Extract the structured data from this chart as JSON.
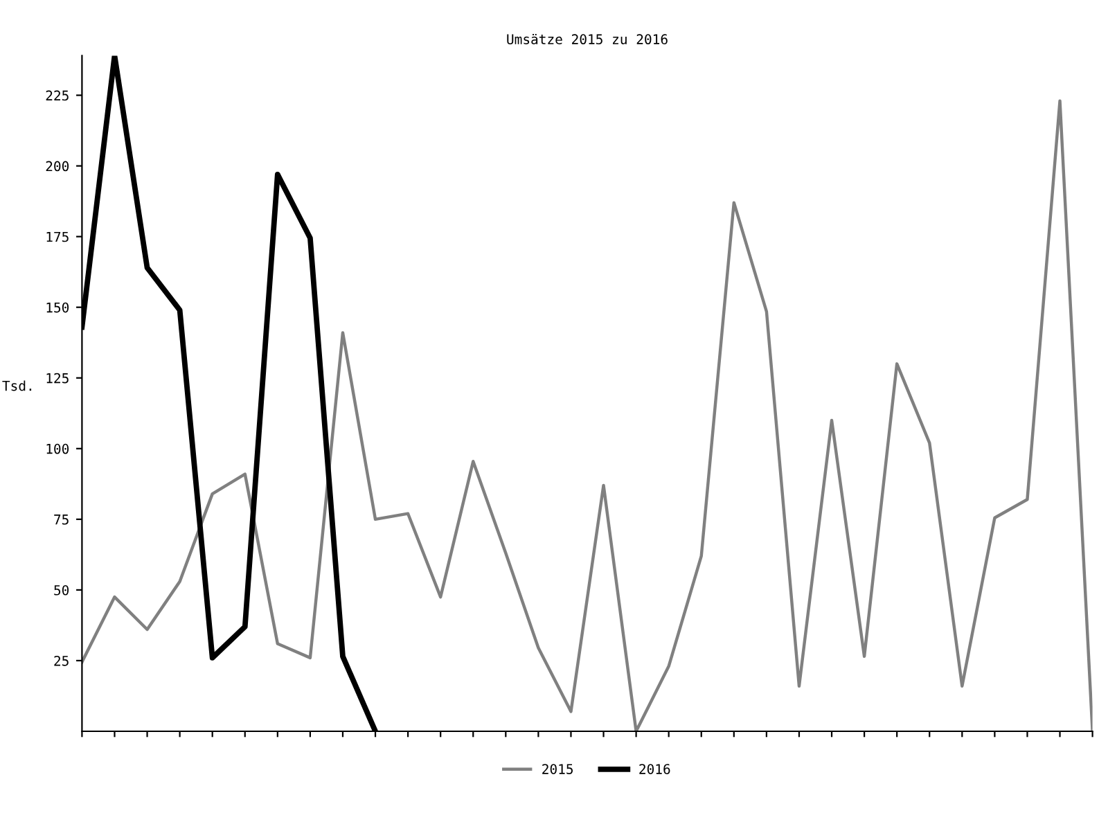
{
  "chart_data": {
    "type": "line",
    "title": "Umsätze 2015 zu 2016",
    "ylabel": "Tsd.",
    "categories": [
      null,
      null,
      null,
      null,
      null,
      null,
      null,
      null,
      null,
      null,
      null,
      null,
      null,
      null,
      null,
      null,
      null,
      null,
      null,
      null,
      null,
      null,
      null,
      null,
      null,
      null,
      null,
      null,
      null,
      null,
      null,
      null
    ],
    "series": [
      {
        "name": "2015",
        "color": "#808080",
        "values": [
          24.5,
          47.5,
          36,
          53,
          84,
          91,
          31,
          26,
          141,
          75,
          77,
          47.5,
          95.5,
          63,
          29.5,
          7,
          87,
          0,
          23,
          62,
          187,
          148.5,
          16,
          110,
          26.5,
          130,
          102,
          16,
          75.5,
          82,
          223,
          0
        ]
      },
      {
        "name": "2016",
        "color": "#000000",
        "values": [
          143,
          239,
          164,
          149,
          26,
          37,
          197,
          174.5,
          26.5,
          0,
          null,
          null,
          null,
          null,
          null,
          null,
          null,
          null,
          null,
          null,
          null,
          null,
          null,
          null,
          null,
          null,
          null,
          null,
          null,
          null,
          null,
          null
        ]
      }
    ],
    "ylim": [
      0,
      239
    ],
    "yticks": [
      25,
      50,
      75,
      100,
      125,
      150,
      175,
      200,
      225
    ],
    "grid": false,
    "legend": "bottom"
  }
}
